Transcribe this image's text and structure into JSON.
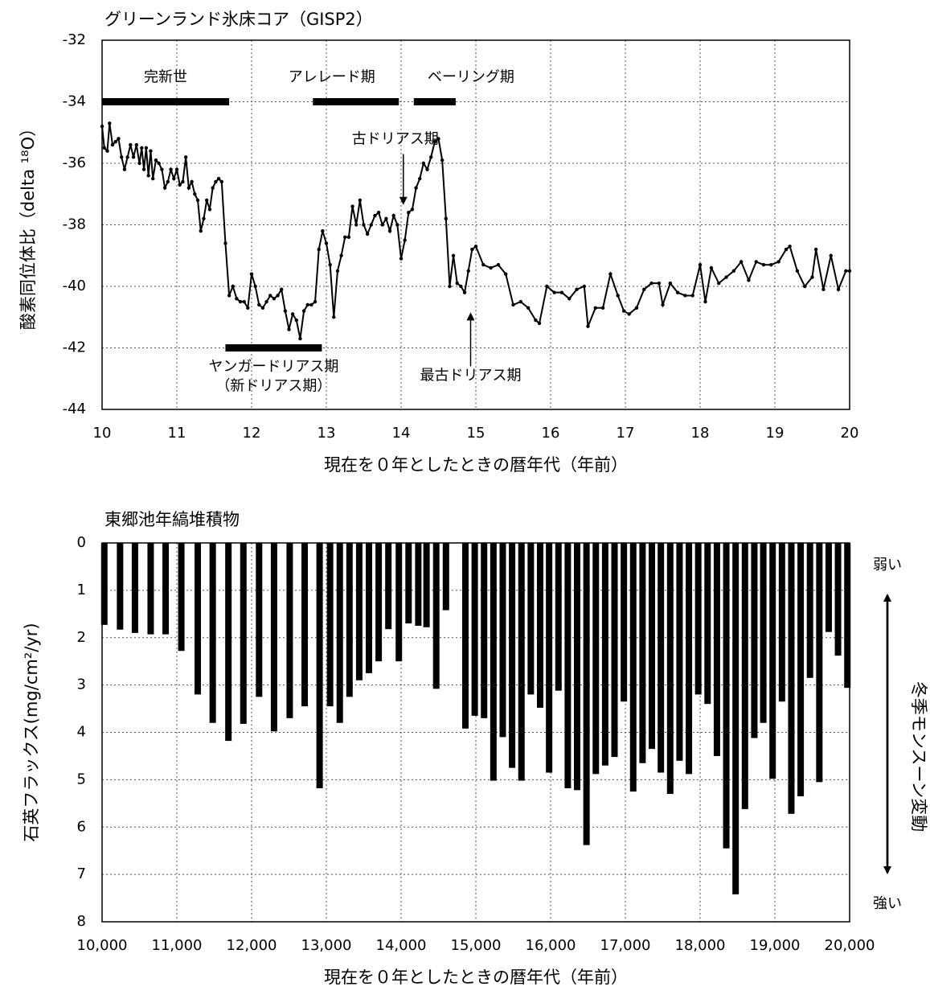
{
  "chart_data": [
    {
      "type": "line",
      "title": "グリーンランド氷床コア（GISP2）",
      "x_label": "現在を０年としたときの暦年代（年前）",
      "y_label": "酸素同位体比（delta ¹⁸O）",
      "color": "#000000",
      "grid": true,
      "xlim": [
        10,
        20
      ],
      "ylim": [
        -44,
        -32
      ],
      "xticks": [
        10,
        11,
        12,
        13,
        14,
        15,
        16,
        17,
        18,
        19,
        20
      ],
      "yticks": [
        -44,
        -42,
        -40,
        -38,
        -36,
        -34,
        -32
      ],
      "x": [
        10,
        10.03,
        10.07,
        10.1,
        10.14,
        10.18,
        10.22,
        10.26,
        10.3,
        10.34,
        10.38,
        10.42,
        10.46,
        10.5,
        10.53,
        10.56,
        10.59,
        10.62,
        10.65,
        10.68,
        10.72,
        10.76,
        10.8,
        10.84,
        10.88,
        10.92,
        10.96,
        11,
        11.04,
        11.08,
        11.12,
        11.16,
        11.2,
        11.24,
        11.28,
        11.32,
        11.36,
        11.4,
        11.44,
        11.48,
        11.52,
        11.56,
        11.6,
        11.65,
        11.7,
        11.75,
        11.8,
        11.85,
        11.9,
        11.95,
        12,
        12.05,
        12.1,
        12.15,
        12.2,
        12.25,
        12.3,
        12.35,
        12.4,
        12.45,
        12.5,
        12.55,
        12.6,
        12.65,
        12.7,
        12.75,
        12.8,
        12.85,
        12.9,
        12.95,
        13,
        13.05,
        13.1,
        13.15,
        13.2,
        13.25,
        13.3,
        13.35,
        13.4,
        13.45,
        13.5,
        13.55,
        13.6,
        13.65,
        13.7,
        13.75,
        13.8,
        13.85,
        13.9,
        13.95,
        14,
        14.05,
        14.1,
        14.15,
        14.2,
        14.25,
        14.3,
        14.35,
        14.4,
        14.45,
        14.5,
        14.55,
        14.6,
        14.65,
        14.7,
        14.75,
        14.8,
        14.85,
        14.9,
        14.95,
        15,
        15.1,
        15.2,
        15.3,
        15.4,
        15.5,
        15.6,
        15.7,
        15.8,
        15.85,
        15.95,
        16.05,
        16.15,
        16.25,
        16.35,
        16.45,
        16.5,
        16.6,
        16.7,
        16.8,
        16.9,
        16.98,
        17.05,
        17.15,
        17.25,
        17.35,
        17.45,
        17.5,
        17.6,
        17.7,
        17.8,
        17.9,
        18,
        18.07,
        18.15,
        18.25,
        18.35,
        18.45,
        18.55,
        18.65,
        18.75,
        18.85,
        18.95,
        19.05,
        19.15,
        19.2,
        19.3,
        19.4,
        19.5,
        19.55,
        19.65,
        19.75,
        19.85,
        19.95,
        20
      ],
      "values": [
        -34.8,
        -35.5,
        -35.6,
        -34.7,
        -35.4,
        -35.3,
        -35.2,
        -35.8,
        -36.2,
        -35.8,
        -35.4,
        -35.8,
        -35.4,
        -36.0,
        -35.5,
        -36.2,
        -35.5,
        -36.4,
        -35.6,
        -36.5,
        -35.9,
        -36.0,
        -36.2,
        -36.8,
        -36.6,
        -36.2,
        -36.5,
        -36.2,
        -36.7,
        -36.6,
        -35.8,
        -36.8,
        -36.6,
        -37.0,
        -37.2,
        -38.2,
        -37.8,
        -37.2,
        -37.5,
        -36.8,
        -36.6,
        -36.5,
        -36.6,
        -38.6,
        -40.3,
        -40.0,
        -40.4,
        -40.5,
        -40.5,
        -40.7,
        -39.6,
        -40.0,
        -40.6,
        -40.7,
        -40.5,
        -40.3,
        -40.4,
        -40.3,
        -40.1,
        -40.8,
        -41.4,
        -40.9,
        -41.1,
        -41.7,
        -40.8,
        -40.6,
        -40.6,
        -40.5,
        -38.8,
        -38.2,
        -38.6,
        -39.3,
        -41.0,
        -39.5,
        -39.0,
        -38.4,
        -38.4,
        -37.4,
        -38.0,
        -37.2,
        -38.0,
        -38.3,
        -38.0,
        -37.7,
        -37.6,
        -38.0,
        -37.8,
        -38.2,
        -37.7,
        -38.0,
        -39.1,
        -38.5,
        -37.6,
        -37.5,
        -36.8,
        -36.5,
        -36.0,
        -36.2,
        -35.8,
        -35.3,
        -35.2,
        -35.9,
        -37.8,
        -40.0,
        -39.0,
        -39.9,
        -40.0,
        -40.2,
        -39.5,
        -38.8,
        -38.7,
        -39.3,
        -39.4,
        -39.3,
        -39.6,
        -40.6,
        -40.5,
        -40.7,
        -41.1,
        -41.2,
        -40.0,
        -40.2,
        -40.2,
        -40.4,
        -40.1,
        -40.0,
        -41.3,
        -40.7,
        -40.7,
        -39.6,
        -40.3,
        -40.8,
        -40.9,
        -40.7,
        -40.1,
        -39.9,
        -39.9,
        -40.6,
        -39.9,
        -40.2,
        -40.3,
        -40.3,
        -39.3,
        -40.5,
        -39.4,
        -39.9,
        -39.7,
        -39.5,
        -39.2,
        -39.8,
        -39.2,
        -39.3,
        -39.3,
        -39.2,
        -38.8,
        -38.7,
        -39.5,
        -40.0,
        -39.7,
        -38.8,
        -40.1,
        -39.0,
        -40.1,
        -39.5,
        -39.5
      ],
      "periods": [
        {
          "label": [
            "完新世"
          ],
          "start": 10,
          "end": 11.7,
          "y": -34
        },
        {
          "label": [
            "アレレード期"
          ],
          "start": 12.82,
          "end": 13.97,
          "y": -34
        },
        {
          "label": [
            "ベーリング期"
          ],
          "start": 14.17,
          "end": 14.73,
          "y": -34
        },
        {
          "label": [
            "ヤンガードリアス期",
            "（新ドリアス期）"
          ],
          "start": 11.65,
          "end": 12.94,
          "y": -42
        }
      ],
      "arrows": [
        {
          "label": "古ドリアス期",
          "x": 14.03,
          "y_from": -35.7,
          "y_to": -37.3
        },
        {
          "label": "最古ドリアス期",
          "x": 14.93,
          "y_from": -42.6,
          "y_to": -40.9
        }
      ]
    },
    {
      "type": "bar",
      "title": "東郷池年縞堆積物",
      "x_label": "現在を０年としたときの暦年代（年前）",
      "y_label": "石英フラックス(mg/cm²/yr)",
      "color": "#000000",
      "grid": true,
      "y_reversed": true,
      "xlim": [
        10000,
        20000
      ],
      "ylim": [
        0,
        8
      ],
      "xticks": [
        {
          "value": 10000,
          "label": "10,000"
        },
        {
          "value": 11000,
          "label": "11,000"
        },
        {
          "value": 12000,
          "label": "12,000"
        },
        {
          "value": 13000,
          "label": "13,000"
        },
        {
          "value": 14000,
          "label": "14,000"
        },
        {
          "value": 15000,
          "label": "15,000"
        },
        {
          "value": 16000,
          "label": "16,000"
        },
        {
          "value": 17000,
          "label": "17,000"
        },
        {
          "value": 18000,
          "label": "18,000"
        },
        {
          "value": 19000,
          "label": "19,000"
        },
        {
          "value": 20000,
          "label": "20,000"
        }
      ],
      "yticks": [
        0,
        1,
        2,
        3,
        4,
        5,
        6,
        7,
        8
      ],
      "x": [
        10030,
        10240,
        10440,
        10650,
        10850,
        11060,
        11280,
        11480,
        11690,
        11890,
        12100,
        12300,
        12510,
        12710,
        12910,
        13050,
        13180,
        13310,
        13440,
        13570,
        13700,
        13830,
        13970,
        14100,
        14230,
        14340,
        14470,
        14600,
        14860,
        14985,
        15110,
        15235,
        15360,
        15485,
        15610,
        15735,
        15860,
        15980,
        16105,
        16230,
        16355,
        16480,
        16605,
        16730,
        16855,
        16980,
        17105,
        17230,
        17355,
        17475,
        17600,
        17725,
        17850,
        17975,
        18100,
        18225,
        18350,
        18475,
        18600,
        18725,
        18845,
        18970,
        19095,
        19220,
        19345,
        19470,
        19595,
        19720,
        19845,
        19970
      ],
      "values": [
        1.73,
        1.83,
        1.9,
        1.93,
        1.93,
        2.28,
        3.2,
        3.8,
        4.18,
        3.82,
        3.25,
        3.98,
        3.7,
        3.45,
        5.18,
        3.45,
        3.8,
        3.25,
        2.9,
        2.75,
        2.5,
        1.82,
        2.5,
        1.7,
        1.75,
        1.78,
        3.08,
        1.42,
        3.92,
        3.65,
        3.7,
        5.02,
        4.1,
        4.75,
        5.02,
        3.2,
        3.48,
        4.85,
        3.12,
        5.18,
        5.22,
        6.38,
        4.88,
        4.7,
        4.52,
        3.35,
        5.25,
        4.65,
        4.35,
        4.85,
        5.3,
        4.6,
        4.88,
        3.2,
        3.4,
        4.5,
        6.45,
        7.42,
        5.62,
        4.12,
        3.8,
        4.98,
        3.35,
        5.72,
        5.35,
        2.85,
        5.05,
        1.88,
        2.38,
        3.06
      ],
      "side_label": "冬季モンスーン変動",
      "side_top": "弱い",
      "side_bottom": "強い"
    }
  ]
}
